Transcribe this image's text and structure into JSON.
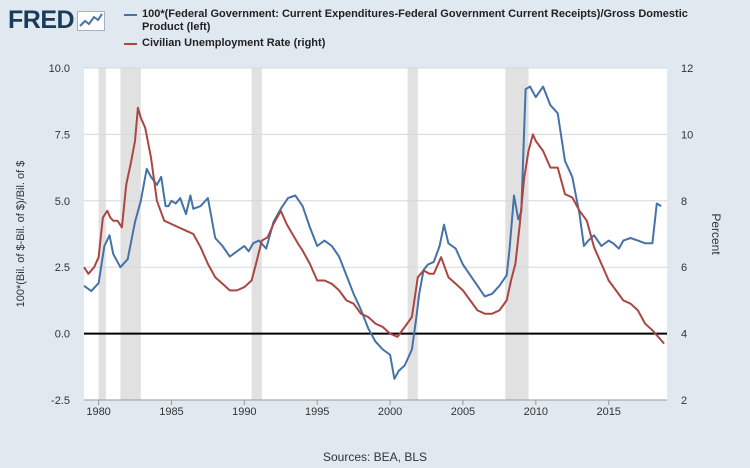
{
  "logo": {
    "text": "FRED",
    "icon": "chart-sparkline-icon"
  },
  "legend": {
    "series1": {
      "label": "100*(Federal Government: Current Expenditures-Federal Government Current Receipts)/Gross Domestic Product (left)",
      "color": "#4572a7"
    },
    "series2": {
      "label": "Civilian Unemployment Rate (right)",
      "color": "#aa4643"
    }
  },
  "source": "Sources: BEA, BLS",
  "chart_data": {
    "type": "line",
    "title": "",
    "xlabel": "",
    "ylabel_left": "100*(Bil. of $-Bil. of $)/Bil. of $",
    "ylabel_right": "Percent",
    "xlim": [
      1979,
      2019
    ],
    "ylim_left": [
      -2.5,
      10
    ],
    "ylim_right": [
      2,
      12
    ],
    "x_ticks": [
      1980,
      1985,
      1990,
      1995,
      2000,
      2005,
      2010,
      2015
    ],
    "x_tick_labels": [
      "1980",
      "1985",
      "1990",
      "1995",
      "2000",
      "2005",
      "2010",
      "2015"
    ],
    "y_left_ticks": [
      -2.5,
      0,
      2.5,
      5,
      7.5,
      10
    ],
    "y_left_tick_labels": [
      "-2.5",
      "0.0",
      "2.5",
      "5.0",
      "7.5",
      "10.0"
    ],
    "y_right_ticks": [
      2,
      4,
      6,
      8,
      10,
      12
    ],
    "y_right_tick_labels": [
      "2",
      "4",
      "6",
      "8",
      "10",
      "12"
    ],
    "zero_line_left": 0,
    "recessions": [
      [
        1980.0,
        1980.5
      ],
      [
        1981.5,
        1982.9
      ],
      [
        1990.5,
        1991.2
      ],
      [
        2001.2,
        2001.9
      ],
      [
        2007.9,
        2009.5
      ]
    ],
    "series": [
      {
        "name": "100*(Federal Government: Current Expenditures-Federal Government Current Receipts)/Gross Domestic Product (left)",
        "axis": "left",
        "color": "#4572a7",
        "x": [
          1979.0,
          1979.5,
          1980.0,
          1980.4,
          1980.75,
          1981.0,
          1981.5,
          1982.0,
          1982.5,
          1982.9,
          1983.3,
          1983.6,
          1984.0,
          1984.3,
          1984.6,
          1984.8,
          1985.0,
          1985.3,
          1985.6,
          1986.0,
          1986.3,
          1986.5,
          1987.0,
          1987.5,
          1988.0,
          1988.5,
          1989.0,
          1989.5,
          1990.0,
          1990.3,
          1990.6,
          1991.0,
          1991.5,
          1992.0,
          1992.5,
          1993.0,
          1993.5,
          1994.0,
          1994.5,
          1995.0,
          1995.5,
          1996.0,
          1996.5,
          1997.0,
          1997.5,
          1998.0,
          1998.5,
          1999.0,
          1999.5,
          2000.0,
          2000.3,
          2000.6,
          2001.0,
          2001.5,
          2001.8,
          2002.0,
          2002.3,
          2002.6,
          2003.0,
          2003.4,
          2003.7,
          2004.0,
          2004.5,
          2005.0,
          2005.5,
          2006.0,
          2006.5,
          2007.0,
          2007.5,
          2008.0,
          2008.2,
          2008.5,
          2008.8,
          2009.0,
          2009.3,
          2009.6,
          2010.0,
          2010.5,
          2011.0,
          2011.5,
          2012.0,
          2012.5,
          2013.0,
          2013.3,
          2013.6,
          2014.0,
          2014.5,
          2015.0,
          2015.3,
          2015.7,
          2016.0,
          2016.5,
          2017.0,
          2017.5,
          2018.0,
          2018.3,
          2018.6
        ],
        "y": [
          1.8,
          1.6,
          1.9,
          3.3,
          3.7,
          3.0,
          2.5,
          2.8,
          4.2,
          5.0,
          6.2,
          5.9,
          5.6,
          5.9,
          4.8,
          4.8,
          5.0,
          4.9,
          5.1,
          4.5,
          5.2,
          4.7,
          4.8,
          5.1,
          3.6,
          3.3,
          2.9,
          3.1,
          3.3,
          3.1,
          3.4,
          3.5,
          3.2,
          4.2,
          4.7,
          5.1,
          5.2,
          4.8,
          4.0,
          3.3,
          3.5,
          3.3,
          2.9,
          2.2,
          1.5,
          0.9,
          0.2,
          -0.3,
          -0.6,
          -0.8,
          -1.7,
          -1.4,
          -1.2,
          -0.6,
          0.6,
          1.5,
          2.4,
          2.6,
          2.7,
          3.3,
          4.1,
          3.4,
          3.2,
          2.6,
          2.2,
          1.8,
          1.4,
          1.5,
          1.8,
          2.2,
          3.2,
          5.2,
          4.3,
          4.6,
          9.2,
          9.3,
          8.9,
          9.3,
          8.6,
          8.3,
          6.5,
          5.9,
          4.5,
          3.3,
          3.5,
          3.7,
          3.3,
          3.5,
          3.4,
          3.2,
          3.5,
          3.6,
          3.5,
          3.4,
          3.4,
          4.9,
          4.8
        ]
      },
      {
        "name": "Civilian Unemployment Rate (right)",
        "axis": "right",
        "color": "#aa4643",
        "x": [
          1979.0,
          1979.3,
          1979.7,
          1980.0,
          1980.3,
          1980.6,
          1980.8,
          1981.0,
          1981.3,
          1981.6,
          1981.9,
          1982.2,
          1982.5,
          1982.7,
          1982.9,
          1983.2,
          1983.6,
          1984.0,
          1984.5,
          1985.0,
          1985.5,
          1986.0,
          1986.5,
          1987.0,
          1987.5,
          1988.0,
          1988.5,
          1989.0,
          1989.5,
          1990.0,
          1990.5,
          1990.8,
          1991.2,
          1991.6,
          1992.0,
          1992.5,
          1992.9,
          1993.3,
          1993.7,
          1994.0,
          1994.5,
          1995.0,
          1995.5,
          1996.0,
          1996.5,
          1997.0,
          1997.5,
          1998.0,
          1998.5,
          1999.0,
          1999.5,
          2000.0,
          2000.5,
          2001.0,
          2001.5,
          2001.9,
          2002.3,
          2002.7,
          2003.0,
          2003.5,
          2004.0,
          2004.5,
          2005.0,
          2005.5,
          2006.0,
          2006.5,
          2007.0,
          2007.5,
          2008.0,
          2008.3,
          2008.6,
          2008.9,
          2009.2,
          2009.5,
          2009.8,
          2010.0,
          2010.5,
          2011.0,
          2011.5,
          2012.0,
          2012.5,
          2013.0,
          2013.5,
          2014.0,
          2014.5,
          2015.0,
          2015.5,
          2016.0,
          2016.5,
          2017.0,
          2017.5,
          2018.0,
          2018.4,
          2018.8
        ],
        "y": [
          6.0,
          5.8,
          6.0,
          6.3,
          7.5,
          7.7,
          7.5,
          7.4,
          7.4,
          7.2,
          8.5,
          9.1,
          9.8,
          10.8,
          10.5,
          10.2,
          9.3,
          8.0,
          7.4,
          7.3,
          7.2,
          7.1,
          7.0,
          6.6,
          6.1,
          5.7,
          5.5,
          5.3,
          5.3,
          5.4,
          5.6,
          6.1,
          6.8,
          6.9,
          7.3,
          7.7,
          7.3,
          7.0,
          6.7,
          6.5,
          6.1,
          5.6,
          5.6,
          5.5,
          5.3,
          5.0,
          4.9,
          4.6,
          4.5,
          4.3,
          4.2,
          4.0,
          3.9,
          4.2,
          4.5,
          5.7,
          5.9,
          5.8,
          5.8,
          6.3,
          5.7,
          5.5,
          5.3,
          5.0,
          4.7,
          4.6,
          4.6,
          4.7,
          5.0,
          5.6,
          6.1,
          7.3,
          8.7,
          9.5,
          10.0,
          9.8,
          9.5,
          9.0,
          9.0,
          8.2,
          8.1,
          7.7,
          7.4,
          6.6,
          6.1,
          5.6,
          5.3,
          5.0,
          4.9,
          4.7,
          4.3,
          4.1,
          3.9,
          3.7
        ]
      }
    ]
  }
}
